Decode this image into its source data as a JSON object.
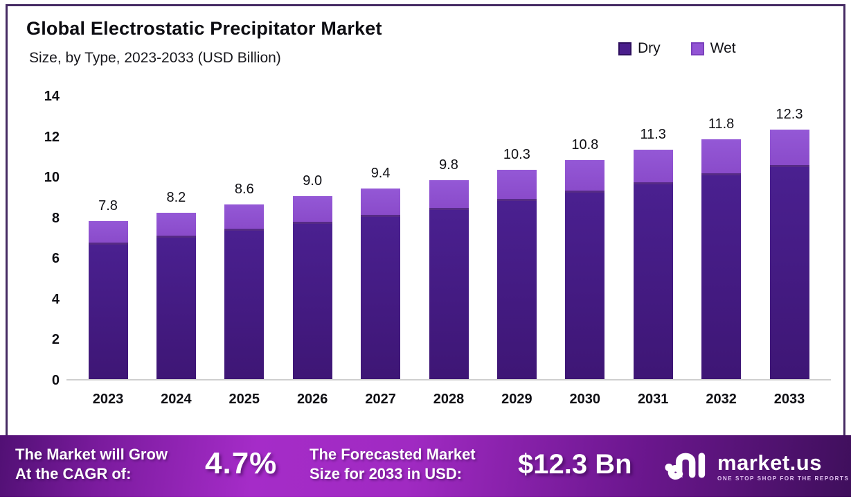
{
  "header": {
    "title": "Global Electrostatic Precipitator Market",
    "subtitle": "Size, by Type, 2023-2033 (USD Billion)"
  },
  "legend": [
    {
      "label": "Dry",
      "color": "#4a1e8c",
      "border": "#2e0f5e"
    },
    {
      "label": "Wet",
      "color": "#9254d4",
      "border": "#7a3fbc"
    }
  ],
  "chart_data": {
    "type": "bar",
    "stacked": true,
    "categories": [
      "2023",
      "2024",
      "2025",
      "2026",
      "2027",
      "2028",
      "2029",
      "2030",
      "2031",
      "2032",
      "2033"
    ],
    "series": [
      {
        "name": "Dry",
        "color": "#4a1e8c",
        "values": [
          6.63,
          6.97,
          7.31,
          7.65,
          7.99,
          8.33,
          8.76,
          9.18,
          9.61,
          10.03,
          10.46
        ]
      },
      {
        "name": "Wet",
        "color": "#9254d4",
        "values": [
          1.17,
          1.23,
          1.29,
          1.35,
          1.41,
          1.47,
          1.54,
          1.62,
          1.69,
          1.77,
          1.84
        ]
      }
    ],
    "totals": [
      7.8,
      8.2,
      8.6,
      9.0,
      9.4,
      9.8,
      10.3,
      10.8,
      11.3,
      11.8,
      12.3
    ],
    "total_labels": [
      "7.8",
      "8.2",
      "8.6",
      "9.0",
      "9.4",
      "9.8",
      "10.3",
      "10.8",
      "11.3",
      "11.8",
      "12.3"
    ],
    "title": "Global Electrostatic Precipitator Market Size, by Type, 2023-2033 (USD Billion)",
    "xlabel": "",
    "ylabel": "",
    "ylim": [
      0,
      14
    ],
    "yticks": [
      0,
      2,
      4,
      6,
      8,
      10,
      12,
      14
    ],
    "grid": false,
    "legend_position": "top-right"
  },
  "footer": {
    "cagr_label_line1": "The Market will Grow",
    "cagr_label_line2": "At the CAGR of:",
    "cagr_value": "4.7%",
    "forecast_label_line1": "The Forecasted Market",
    "forecast_label_line2": "Size for 2033 in USD:",
    "forecast_value": "$12.3 Bn",
    "brand": {
      "name": "market.us",
      "tagline": "ONE STOP SHOP FOR THE REPORTS"
    }
  },
  "colors": {
    "frame_border": "#452a63",
    "banner_gradient_start": "#511074",
    "banner_gradient_mid": "#a52cc8",
    "banner_gradient_end": "#3f0f5c",
    "axis_line": "#cfcfcf",
    "text": "#0f0f14"
  }
}
